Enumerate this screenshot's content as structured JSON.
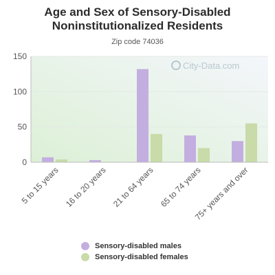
{
  "chart_data": {
    "type": "bar",
    "title": "Age and Sex of Sensory-Disabled Noninstitutionalized Residents",
    "subtitle": "Zip code 74036",
    "watermark": "City-Data.com",
    "categories": [
      "5 to 15 years",
      "16 to 20 years",
      "21 to 64 years",
      "65 to 74 years",
      "75+ years and over"
    ],
    "series": [
      {
        "name": "Sensory-disabled males",
        "color": "#c3aee0",
        "values": [
          7,
          3,
          132,
          38,
          30
        ]
      },
      {
        "name": "Sensory-disabled females",
        "color": "#c8dba8",
        "values": [
          4,
          0,
          40,
          20,
          55
        ]
      }
    ],
    "y_ticks": [
      0,
      50,
      100,
      150
    ],
    "ylim": [
      0,
      150
    ],
    "grid": true,
    "legend_position": "bottom"
  }
}
